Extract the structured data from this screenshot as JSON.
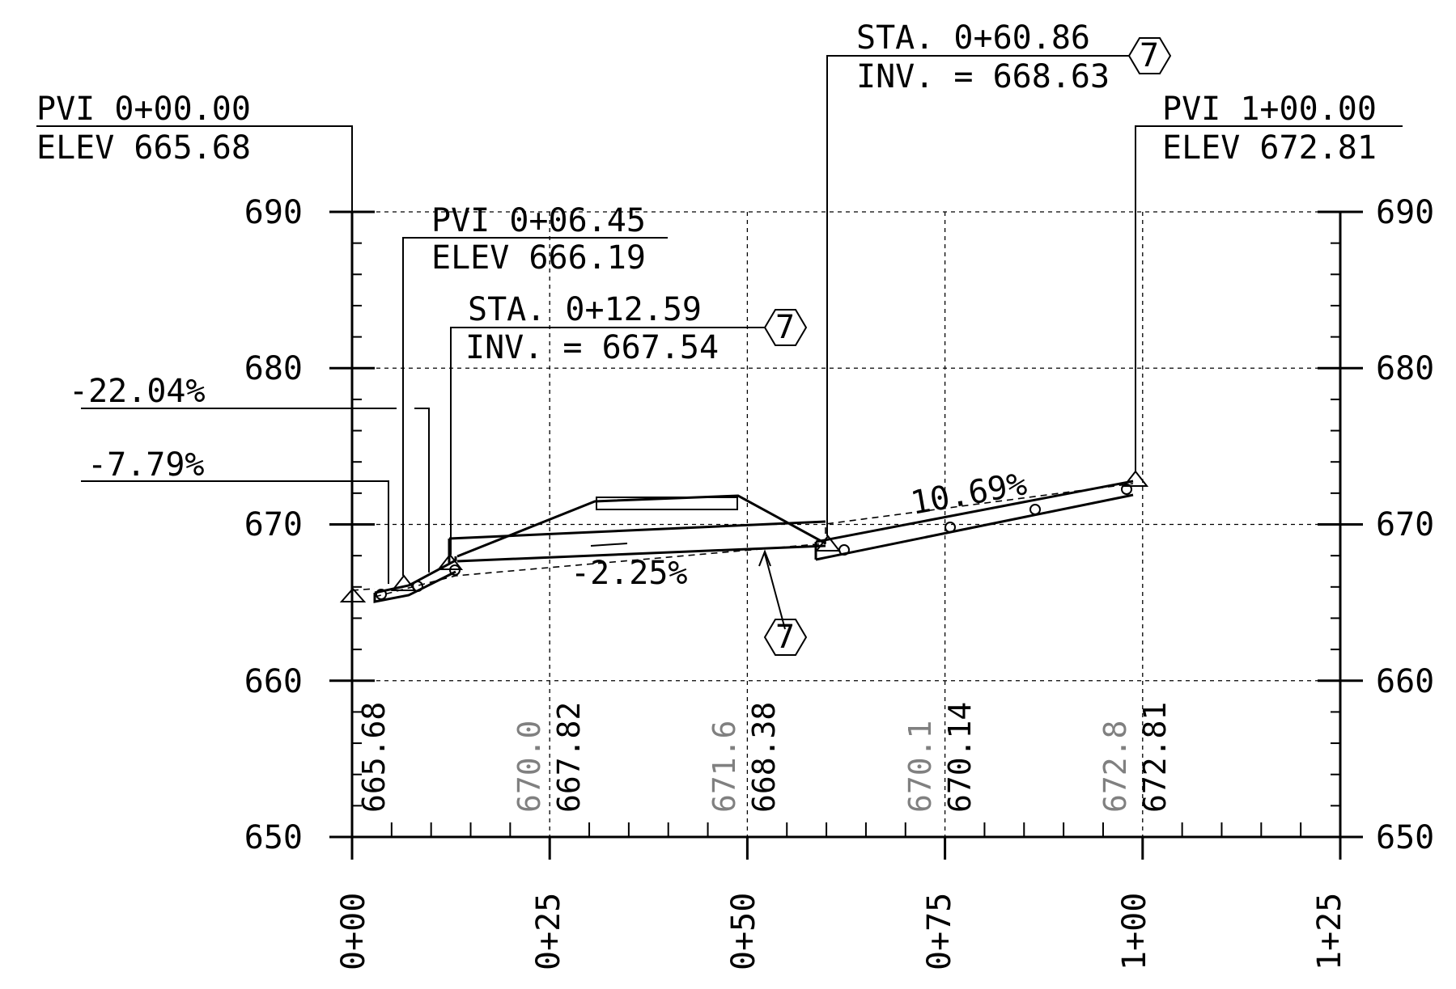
{
  "y_axis": {
    "ticks": [
      {
        "value": 690,
        "label": "690"
      },
      {
        "value": 680,
        "label": "680"
      },
      {
        "value": 670,
        "label": "670"
      },
      {
        "value": 660,
        "label": "660"
      },
      {
        "value": 650,
        "label": "650"
      }
    ],
    "range": [
      650,
      690
    ]
  },
  "x_axis": {
    "ticks": [
      {
        "value": 0,
        "label": "0+00"
      },
      {
        "value": 25,
        "label": "0+25"
      },
      {
        "value": 50,
        "label": "0+50"
      },
      {
        "value": 75,
        "label": "0+75"
      },
      {
        "value": 100,
        "label": "1+00"
      },
      {
        "value": 125,
        "label": "1+25"
      }
    ],
    "range": [
      0,
      125
    ]
  },
  "station_elevations": [
    {
      "station": 0,
      "existing": "",
      "proposed": "665.68"
    },
    {
      "station": 25,
      "existing": "670.0",
      "proposed": "667.82"
    },
    {
      "station": 50,
      "existing": "671.6",
      "proposed": "668.38"
    },
    {
      "station": 75,
      "existing": "670.1",
      "proposed": "670.14"
    },
    {
      "station": 100,
      "existing": "672.8",
      "proposed": "672.81"
    }
  ],
  "pvi_labels": [
    {
      "id": "pvi-0-00",
      "line1": "PVI 0+00.00",
      "line2": "ELEV 665.68",
      "station": 0,
      "elev": 665.68
    },
    {
      "id": "pvi-0-06",
      "line1": "PVI 0+06.45",
      "line2": "ELEV 666.19",
      "station": 6.45,
      "elev": 666.19
    },
    {
      "id": "pvi-1-00",
      "line1": "PVI 1+00.00",
      "line2": "ELEV 672.81",
      "station": 100,
      "elev": 672.81
    }
  ],
  "inverts": [
    {
      "id": "inv-0-12",
      "line1": "STA. 0+12.59",
      "line2": "INV. =  667.54",
      "station": 12.59,
      "elev": 667.54,
      "tag": "7"
    },
    {
      "id": "inv-0-60",
      "line1": "STA. 0+60.86",
      "line2": "INV. = 668.63",
      "station": 60.86,
      "elev": 668.63,
      "tag": "7"
    }
  ],
  "slopes": [
    {
      "id": "slope-a",
      "label": "-22.04%"
    },
    {
      "id": "slope-b",
      "label": "-7.79%"
    },
    {
      "id": "slope-c",
      "label": "-2.25%"
    },
    {
      "id": "slope-d",
      "label": "10.69%"
    }
  ],
  "pipe_tag": "7",
  "profile_points": [
    {
      "station": 0,
      "elev": 665.68
    },
    {
      "station": 6.45,
      "elev": 666.19
    },
    {
      "station": 12.59,
      "elev": 667.54
    },
    {
      "station": 60.86,
      "elev": 668.63
    },
    {
      "station": 100,
      "elev": 672.81
    }
  ]
}
